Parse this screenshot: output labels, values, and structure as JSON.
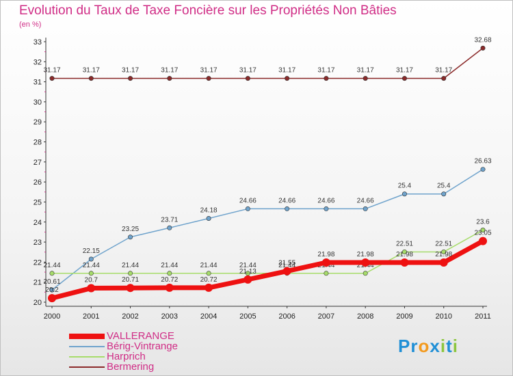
{
  "chart_data": {
    "type": "line",
    "title": "Evolution du Taux de Taxe Foncière sur les Propriétés Non Bâties",
    "ylabel": "(en %)",
    "xlabel": "",
    "ylim": [
      20,
      33
    ],
    "yticks": [
      "20",
      "21",
      "22",
      "23",
      "24",
      "25",
      "26",
      "27",
      "28",
      "29",
      "30",
      "31",
      "32",
      "33"
    ],
    "categories": [
      "2000",
      "2001",
      "2002",
      "2003",
      "2004",
      "2005",
      "2006",
      "2007",
      "2008",
      "2009",
      "2010",
      "2011"
    ],
    "series": [
      {
        "name": "Bermering",
        "color": "#8b2a2a",
        "values": [
          31.17,
          31.17,
          31.17,
          31.17,
          31.17,
          31.17,
          31.17,
          31.17,
          31.17,
          31.17,
          31.17,
          32.68
        ],
        "labels": [
          "31.17",
          "31.17",
          "31.17",
          "31.17",
          "31.17",
          "31.17",
          "31.17",
          "31.17",
          "31.17",
          "31.17",
          "31.17",
          "32.68"
        ]
      },
      {
        "name": "Bérig-Vintrange",
        "color": "#6fa3cc",
        "values": [
          20.61,
          22.15,
          23.25,
          23.71,
          24.18,
          24.66,
          24.66,
          24.66,
          24.66,
          25.4,
          25.4,
          26.63
        ],
        "labels": [
          "20.61",
          "22.15",
          "23.25",
          "23.71",
          "24.18",
          "24.66",
          "24.66",
          "24.66",
          "24.66",
          "25.4",
          "25.4",
          "26.63"
        ]
      },
      {
        "name": "Harprich",
        "color": "#a6dc6a",
        "values": [
          21.44,
          21.44,
          21.44,
          21.44,
          21.44,
          21.44,
          21.44,
          21.44,
          21.44,
          22.51,
          22.51,
          23.6
        ],
        "labels": [
          "21.44",
          "21.44",
          "21.44",
          "21.44",
          "21.44",
          "21.44",
          "21.44",
          "21.44",
          "21.44",
          "22.51",
          "22.51",
          "23.6"
        ]
      },
      {
        "name": "VALLERANGE",
        "color": "#ee1111",
        "values": [
          20.2,
          20.7,
          20.71,
          20.72,
          20.72,
          21.13,
          21.55,
          21.98,
          21.98,
          21.98,
          21.98,
          23.05
        ],
        "labels": [
          "20.2",
          "20.7",
          "20.71",
          "20.72",
          "20.72",
          "21.13",
          "21.55",
          "21.98",
          "21.98",
          "21.98",
          "21.98",
          "23.05"
        ]
      }
    ],
    "legend": [
      "VALLERANGE",
      "Bérig-Vintrange",
      "Harprich",
      "Bermering"
    ],
    "logo": "Proxiti"
  }
}
